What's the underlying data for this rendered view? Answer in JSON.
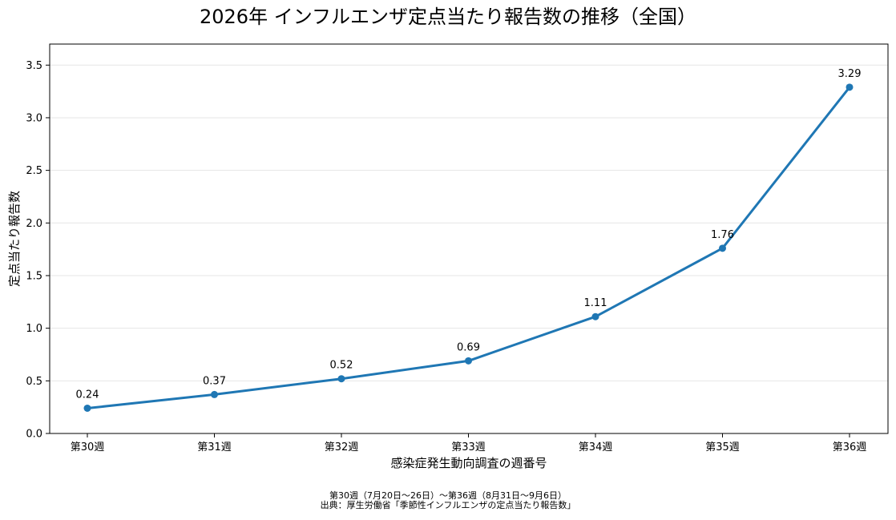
{
  "chart_data": {
    "type": "line",
    "title": "2026年 インフルエンザ定点当たり報告数の推移（全国）",
    "xlabel": "感染症発生動向調査の週番号",
    "ylabel": "定点当たり報告数",
    "categories": [
      "第30週",
      "第31週",
      "第32週",
      "第33週",
      "第34週",
      "第35週",
      "第36週"
    ],
    "series": [
      {
        "values": [
          0.24,
          0.37,
          0.52,
          0.69,
          1.11,
          1.76,
          3.29
        ]
      }
    ],
    "data_labels": [
      "0.24",
      "0.37",
      "0.52",
      "0.69",
      "1.11",
      "1.76",
      "3.29"
    ],
    "ylim": [
      0,
      3.7
    ],
    "yticks": [
      0.0,
      0.5,
      1.0,
      1.5,
      2.0,
      2.5,
      3.0,
      3.5
    ],
    "ytick_labels": [
      "0.0",
      "0.5",
      "1.0",
      "1.5",
      "2.0",
      "2.5",
      "3.0",
      "3.5"
    ],
    "grid": "horizontal",
    "line_color": "#1f77b4"
  },
  "footnotes": {
    "line1": "第30週（7月20日〜26日）〜第36週（8月31日〜9月6日）",
    "line2": "出典：厚生労働省「季節性インフルエンザの定点当たり報告数」"
  }
}
